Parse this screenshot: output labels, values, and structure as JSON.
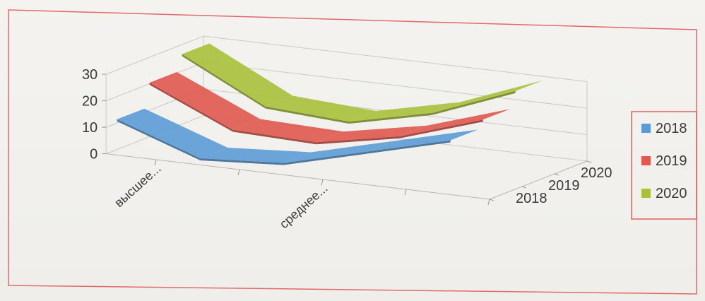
{
  "chart_data": {
    "type": "line",
    "style": "3d-ribbon",
    "categories": [
      "высшее...",
      "",
      "среднее...",
      "",
      ""
    ],
    "series": [
      {
        "name": "2018",
        "color": "#5b9bd5",
        "values": [
          13,
          2,
          4,
          12,
          20
        ]
      },
      {
        "name": "2019",
        "color": "#e0584f",
        "values": [
          22,
          8,
          7,
          13,
          23
        ]
      },
      {
        "name": "2020",
        "color": "#a9c03a",
        "values": [
          28,
          12,
          10,
          17,
          29
        ]
      }
    ],
    "depth_labels": [
      "2018",
      "2019",
      "2020"
    ],
    "ylim": [
      0,
      30
    ],
    "y_ticks": [
      "0",
      "10",
      "20",
      "30"
    ],
    "grid": true,
    "legend_position": "right",
    "frame_color": "#e06060"
  }
}
